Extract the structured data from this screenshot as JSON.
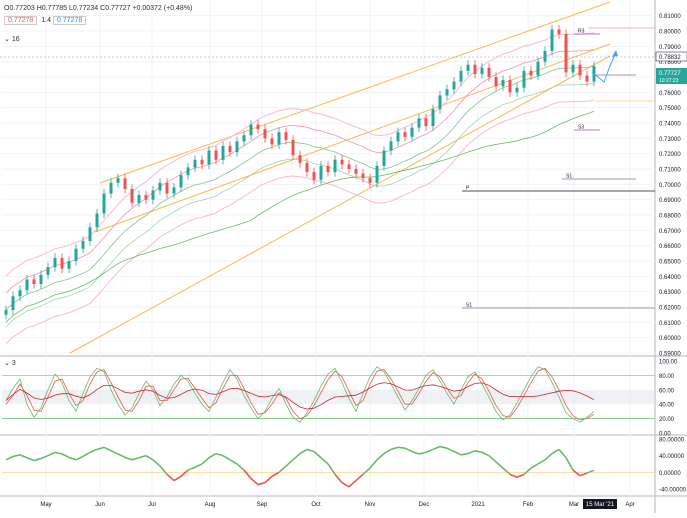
{
  "header": {
    "ohlc": "O0.77203 H0.77785 L0.77234 C0.77727 +0.00372 (+0.48%)",
    "indicator_a_value": "0.77278",
    "indicator_a_param": "1.4",
    "indicator_b_value": "0.77278",
    "indicator_c_param": "16"
  },
  "price_scale": {
    "ticks": [
      "0.81000",
      "0.80000",
      "0.79000",
      "0.78000",
      "0.77000",
      "0.76000",
      "0.75000",
      "0.74000",
      "0.73000",
      "0.72000",
      "0.71000",
      "0.70000",
      "0.69000",
      "0.68000",
      "0.67000",
      "0.66000",
      "0.65000",
      "0.64000",
      "0.63000",
      "0.62000",
      "0.61000",
      "0.60000",
      "0.59000"
    ],
    "badge_top": "0.78832",
    "badge_price": "0.77727",
    "badge_countdown": "10:27:23",
    "label_R3": "R3",
    "label_S1": "S1",
    "label_S3": "S3",
    "label_P": "P",
    "label_S1b": "S1"
  },
  "stoch_scale": {
    "ticks": [
      "100.00",
      "80.00",
      "60.00",
      "40.00",
      "20.00",
      "0.00"
    ],
    "label": "3"
  },
  "osc_scale": {
    "ticks": [
      "80.00000",
      "40.00000",
      "0.00000",
      "-40.00000"
    ]
  },
  "time_axis": {
    "labels": [
      "May",
      "Jun",
      "Jul",
      "Aug",
      "Sep",
      "Oct",
      "Nov",
      "Dec",
      "2021",
      "Feb",
      "Mar",
      "Apr"
    ],
    "current": "15 Mar '21"
  },
  "chart_data": {
    "type": "line",
    "panes": [
      "price",
      "stochastic",
      "oscillator"
    ],
    "price": {
      "ylim": [
        0.59,
        0.815
      ],
      "series": [
        {
          "name": "close",
          "values": [
            0.618,
            0.627,
            0.631,
            0.638,
            0.635,
            0.641,
            0.646,
            0.652,
            0.645,
            0.65,
            0.658,
            0.663,
            0.672,
            0.681,
            0.694,
            0.701,
            0.704,
            0.697,
            0.688,
            0.693,
            0.69,
            0.696,
            0.701,
            0.694,
            0.698,
            0.706,
            0.711,
            0.716,
            0.713,
            0.722,
            0.716,
            0.725,
            0.721,
            0.728,
            0.732,
            0.739,
            0.736,
            0.73,
            0.726,
            0.734,
            0.729,
            0.719,
            0.714,
            0.708,
            0.703,
            0.712,
            0.708,
            0.716,
            0.713,
            0.71,
            0.707,
            0.704,
            0.701,
            0.712,
            0.722,
            0.728,
            0.734,
            0.731,
            0.737,
            0.743,
            0.738,
            0.749,
            0.758,
            0.762,
            0.767,
            0.774,
            0.778,
            0.772,
            0.776,
            0.77,
            0.764,
            0.768,
            0.76,
            0.763,
            0.774,
            0.771,
            0.78,
            0.787,
            0.801,
            0.798,
            0.773,
            0.778,
            0.771,
            0.767,
            0.777
          ]
        }
      ]
    },
    "stochastic": {
      "ylim": [
        0,
        100
      ],
      "series": [
        {
          "name": "%K",
          "values": [
            45,
            62,
            75,
            40,
            22,
            35,
            60,
            82,
            70,
            45,
            30,
            55,
            78,
            90,
            85,
            60,
            40,
            25,
            35,
            55,
            72,
            60,
            38,
            50,
            68,
            80,
            72,
            55,
            40,
            30,
            50,
            70,
            88,
            75,
            52,
            35,
            20,
            30,
            48,
            62,
            40,
            22,
            15,
            28,
            45,
            65,
            82,
            90,
            70,
            48,
            30,
            55,
            78,
            92,
            85,
            68,
            50,
            32,
            45,
            62,
            80,
            88,
            72,
            55,
            40,
            60,
            78,
            85,
            68,
            50,
            30,
            18,
            25,
            42,
            60,
            78,
            92,
            88,
            70,
            50,
            28,
            20,
            15,
            22,
            30
          ]
        },
        {
          "name": "%D",
          "values": [
            40,
            52,
            68,
            52,
            32,
            30,
            50,
            72,
            75,
            55,
            38,
            45,
            68,
            85,
            88,
            70,
            50,
            32,
            30,
            45,
            65,
            65,
            45,
            45,
            60,
            75,
            76,
            62,
            48,
            35,
            42,
            62,
            80,
            80,
            62,
            42,
            26,
            28,
            40,
            56,
            48,
            30,
            20,
            24,
            38,
            56,
            74,
            86,
            78,
            58,
            38,
            45,
            68,
            86,
            88,
            75,
            58,
            40,
            40,
            55,
            72,
            84,
            78,
            62,
            48,
            52,
            70,
            82,
            75,
            58,
            38,
            24,
            22,
            35,
            52,
            70,
            86,
            90,
            78,
            60,
            38,
            24,
            18,
            20,
            26
          ]
        }
      ]
    },
    "oscillator": {
      "ylim": [
        -50,
        85
      ],
      "series": [
        {
          "name": "oscillator",
          "values": [
            30,
            38,
            42,
            35,
            28,
            33,
            40,
            48,
            44,
            36,
            30,
            38,
            48,
            55,
            60,
            52,
            44,
            36,
            30,
            35,
            40,
            30,
            15,
            -5,
            -20,
            -10,
            5,
            12,
            20,
            35,
            45,
            40,
            30,
            20,
            5,
            -15,
            -30,
            -25,
            -10,
            0,
            15,
            30,
            45,
            55,
            50,
            35,
            20,
            -5,
            -25,
            -35,
            -20,
            -5,
            10,
            30,
            45,
            55,
            60,
            58,
            50,
            44,
            48,
            55,
            62,
            58,
            50,
            42,
            45,
            52,
            48,
            40,
            25,
            10,
            -5,
            -12,
            -5,
            10,
            20,
            30,
            45,
            55,
            35,
            5,
            -8,
            -2,
            5
          ]
        }
      ]
    }
  }
}
